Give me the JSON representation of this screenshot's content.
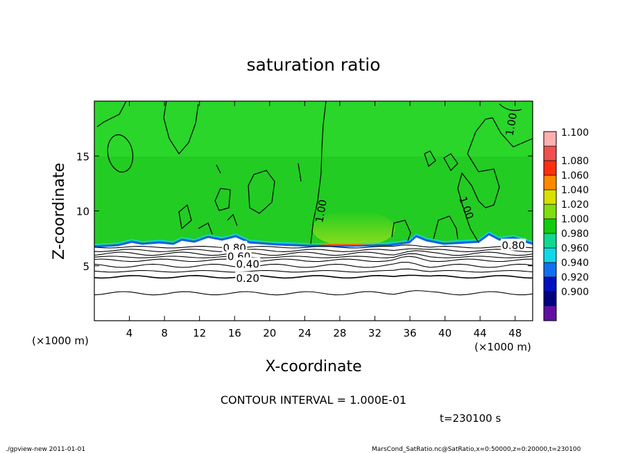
{
  "chart_data": {
    "type": "heatmap",
    "title": "saturation ratio",
    "xlabel": "X-coordinate",
    "ylabel": "Z-coordinate",
    "x_unit": "(×1000 m)",
    "y_unit": "(×1000 m)",
    "xlim": [
      0,
      50
    ],
    "ylim": [
      0,
      20
    ],
    "x_ticks": [
      4,
      8,
      12,
      16,
      20,
      24,
      28,
      32,
      36,
      40,
      44,
      48
    ],
    "y_ticks": [
      5,
      10,
      15
    ],
    "contour_interval_text": "CONTOUR INTERVAL = 1.000E-01",
    "time_text": "t=230100 s",
    "footer_left": "./gpview-new   2011-01-01",
    "footer_right": "MarsCond_SatRatio.nc@SatRatio,x=0:50000,z=0:20000,t=230100",
    "colorbar": {
      "labels": [
        "1.100",
        "1.080",
        "1.060",
        "1.040",
        "1.020",
        "1.000",
        "0.980",
        "0.960",
        "0.940",
        "0.920",
        "0.900"
      ],
      "colors": [
        "#ffb0b0",
        "#f05050",
        "#ff3010",
        "#ff8a00",
        "#d8e000",
        "#80dd10",
        "#10cc10",
        "#10d890",
        "#10d8e8",
        "#1070f0",
        "#0010c0",
        "#000080",
        "#6010a0"
      ]
    },
    "background_colors": {
      "saturated": "#22cc22",
      "upper": "#2edc2e",
      "boundary": "#1060f0",
      "dry": "#ffffff"
    },
    "contour_labels": [
      {
        "text": "1.00",
        "x": 47.5,
        "z": 17.9,
        "rotate": -80
      },
      {
        "text": "1.00",
        "x": 25.8,
        "z": 10.0,
        "rotate": -80
      },
      {
        "text": "1.00",
        "x": 42.5,
        "z": 10.3,
        "rotate": 70
      },
      {
        "text": "0.80",
        "x": 16.0,
        "z": 6.7,
        "rotate": 0
      },
      {
        "text": "0.80",
        "x": 47.8,
        "z": 6.9,
        "rotate": 0
      },
      {
        "text": "0.60",
        "x": 16.5,
        "z": 5.9,
        "rotate": 0
      },
      {
        "text": "0.40",
        "x": 17.5,
        "z": 5.2,
        "rotate": 0
      },
      {
        "text": "0.20",
        "x": 17.5,
        "z": 3.9,
        "rotate": 0
      }
    ],
    "dry_layer_contours": [
      {
        "level": 0.9,
        "z": 6.7
      },
      {
        "level": 0.8,
        "z": 6.4
      },
      {
        "level": 0.7,
        "z": 6.1
      },
      {
        "level": 0.6,
        "z": 5.8
      },
      {
        "level": 0.5,
        "z": 5.5
      },
      {
        "level": 0.4,
        "z": 5.0
      },
      {
        "level": 0.3,
        "z": 4.5
      },
      {
        "level": 0.2,
        "z": 4.0
      },
      {
        "level": 0.1,
        "z": 2.5
      }
    ]
  }
}
